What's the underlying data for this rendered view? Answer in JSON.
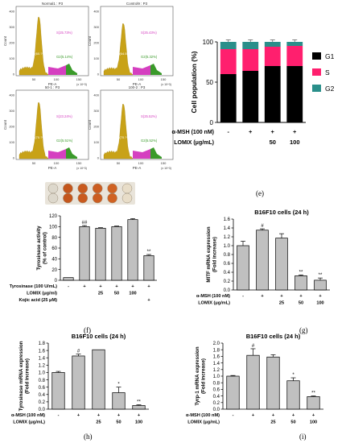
{
  "colors": {
    "gold": "#c8a218",
    "magenta": "#d53fc0",
    "green": "#3a9a2a",
    "g1": "#000000",
    "s": "#ff1f6e",
    "g2": "#2a8f8a",
    "bar": "#c0c0c0"
  },
  "flow": {
    "panels": [
      {
        "title": "Normal1 : P3",
        "s": "S(25.73%)",
        "g2": "G2(5.14%)",
        "g1": "G1(60.??%)",
        "xlabel": "PE-A",
        "xunit": "(x 10^3)"
      },
      {
        "title": "Control9 : P3",
        "s": "S(25.43%)",
        "g2": "G2(5.32%)",
        "g1": "G1(64.55%)",
        "xlabel": "PE-A",
        "xunit": "(x 10^3)"
      },
      {
        "title": "50-1 : P3",
        "s": "S(23.24%)",
        "g2": "G2(5.51%)",
        "g1": "G1(70.??%)",
        "xlabel": "PE-A",
        "xunit": "(x 10^3)"
      },
      {
        "title": "100-2 : P3",
        "s": "S(25.52%)",
        "g2": "G2(5.52%)",
        "g1": "G1(70.??%)",
        "xlabel": "PE-A",
        "xunit": "(x 10^3)"
      }
    ],
    "ylabel": "Count",
    "yticks": [
      "400",
      "300",
      "200",
      "100",
      "0"
    ],
    "xticks": [
      "50",
      "100",
      "150"
    ]
  },
  "chart_data": [
    {
      "id": "e",
      "type": "bar",
      "stacked": true,
      "ylabel": "Cell population (%)",
      "ylim": [
        0,
        100
      ],
      "yticks": [
        "0",
        "50",
        "100"
      ],
      "legend": [
        "G1",
        "S",
        "G2"
      ],
      "series": [
        {
          "name": "G1",
          "values": [
            60,
            64,
            70,
            70
          ]
        },
        {
          "name": "S",
          "values": [
            31,
            27,
            24,
            25
          ]
        },
        {
          "name": "G2",
          "values": [
            9,
            9,
            6,
            5
          ]
        }
      ],
      "treatments": [
        {
          "label": "α-MSH (100 nM)",
          "values": [
            "-",
            "+",
            "+",
            "+"
          ]
        },
        {
          "label": "LOMIX (μg/mL)",
          "values": [
            "",
            "",
            "50",
            "100"
          ]
        }
      ],
      "panel_label": "(e)"
    },
    {
      "id": "f",
      "type": "bar",
      "ylabel": "Tyrosinase activity\n(% of control)",
      "ylim": [
        0,
        120
      ],
      "yticks": [
        "0",
        "20",
        "40",
        "60",
        "80",
        "100",
        "120"
      ],
      "values": [
        5,
        100,
        97,
        100,
        113,
        46
      ],
      "errors": [
        0,
        2,
        1,
        1,
        2,
        2
      ],
      "marks": [
        "",
        "##",
        "",
        "",
        "",
        "**"
      ],
      "treatments": [
        {
          "label": "Tyrosinase (100 U/mL)",
          "values": [
            "-",
            "+",
            "+",
            "+",
            "+",
            "+"
          ]
        },
        {
          "label": "LOMIX (μg/ml)",
          "values": [
            "",
            "",
            "25",
            "50",
            "100",
            ""
          ]
        },
        {
          "label": "Kojic acid (25 μM)",
          "values": [
            "",
            "",
            "",
            "",
            "",
            "+"
          ]
        }
      ],
      "panel_label": "(f)"
    },
    {
      "id": "g",
      "type": "bar",
      "title": "B16F10 cells (24 h)",
      "ylabel": "MITF mRNA expression\n(Fold increase)",
      "ylim": [
        0,
        1.6
      ],
      "yticks": [
        "0.0",
        "0.2",
        "0.4",
        "0.6",
        "0.8",
        "1.0",
        "1.2",
        "1.4",
        "1.6"
      ],
      "values": [
        1.0,
        1.35,
        1.17,
        0.32,
        0.22
      ],
      "errors": [
        0.1,
        0.03,
        0.1,
        0.02,
        0.05
      ],
      "marks": [
        "",
        "#",
        "",
        "**",
        "**"
      ],
      "treatments": [
        {
          "label": "α-MSH (100 nM)",
          "values": [
            "-",
            "+",
            "+",
            "+",
            "+"
          ]
        },
        {
          "label": "LOMIX (μg/mL)",
          "values": [
            "",
            "",
            "25",
            "50",
            "100"
          ]
        }
      ],
      "panel_label": "(g)"
    },
    {
      "id": "h",
      "type": "bar",
      "title": "B16F10 cells (24 h)",
      "ylabel": "Tyrosinase mRNA expression\n(Fold increase)",
      "ylim": [
        0,
        1.8
      ],
      "yticks": [
        "0.0",
        "0.2",
        "0.4",
        "0.6",
        "0.8",
        "1.0",
        "1.2",
        "1.4",
        "1.6",
        "1.8"
      ],
      "values": [
        1.0,
        1.45,
        1.62,
        0.45,
        0.1
      ],
      "errors": [
        0.03,
        0.05,
        0.0,
        0.15,
        0.02
      ],
      "marks": [
        "",
        "#",
        "",
        "*",
        "**"
      ],
      "treatments": [
        {
          "label": "α-MSH (100 nM)",
          "values": [
            "-",
            "+",
            "+",
            "+",
            "+"
          ]
        },
        {
          "label": "LOMIX (μg/mL)",
          "values": [
            "",
            "",
            "25",
            "50",
            "100"
          ]
        }
      ],
      "panel_label": "(h)"
    },
    {
      "id": "i",
      "type": "bar",
      "title": "B16F10 cells (24 h)",
      "ylabel": "Tyrp-1 mRNA expression\n(Fold increase)",
      "ylim": [
        0,
        2.0
      ],
      "yticks": [
        "0.0",
        "0.2",
        "0.4",
        "0.6",
        "0.8",
        "1.0",
        "1.2",
        "1.4",
        "1.6",
        "1.8",
        "2.0"
      ],
      "values": [
        1.0,
        1.63,
        1.58,
        0.86,
        0.38
      ],
      "errors": [
        0.02,
        0.2,
        0.07,
        0.09,
        0.02
      ],
      "marks": [
        "",
        "#",
        "",
        "*",
        "**"
      ],
      "treatments": [
        {
          "label": "α-MSH (100 nM)",
          "values": [
            "-",
            "+",
            "+",
            "+",
            "+"
          ]
        },
        {
          "label": "LOMIX (μg/mL)",
          "values": [
            "",
            "",
            "25",
            "50",
            "100"
          ]
        }
      ],
      "panel_label": "(i)"
    }
  ]
}
